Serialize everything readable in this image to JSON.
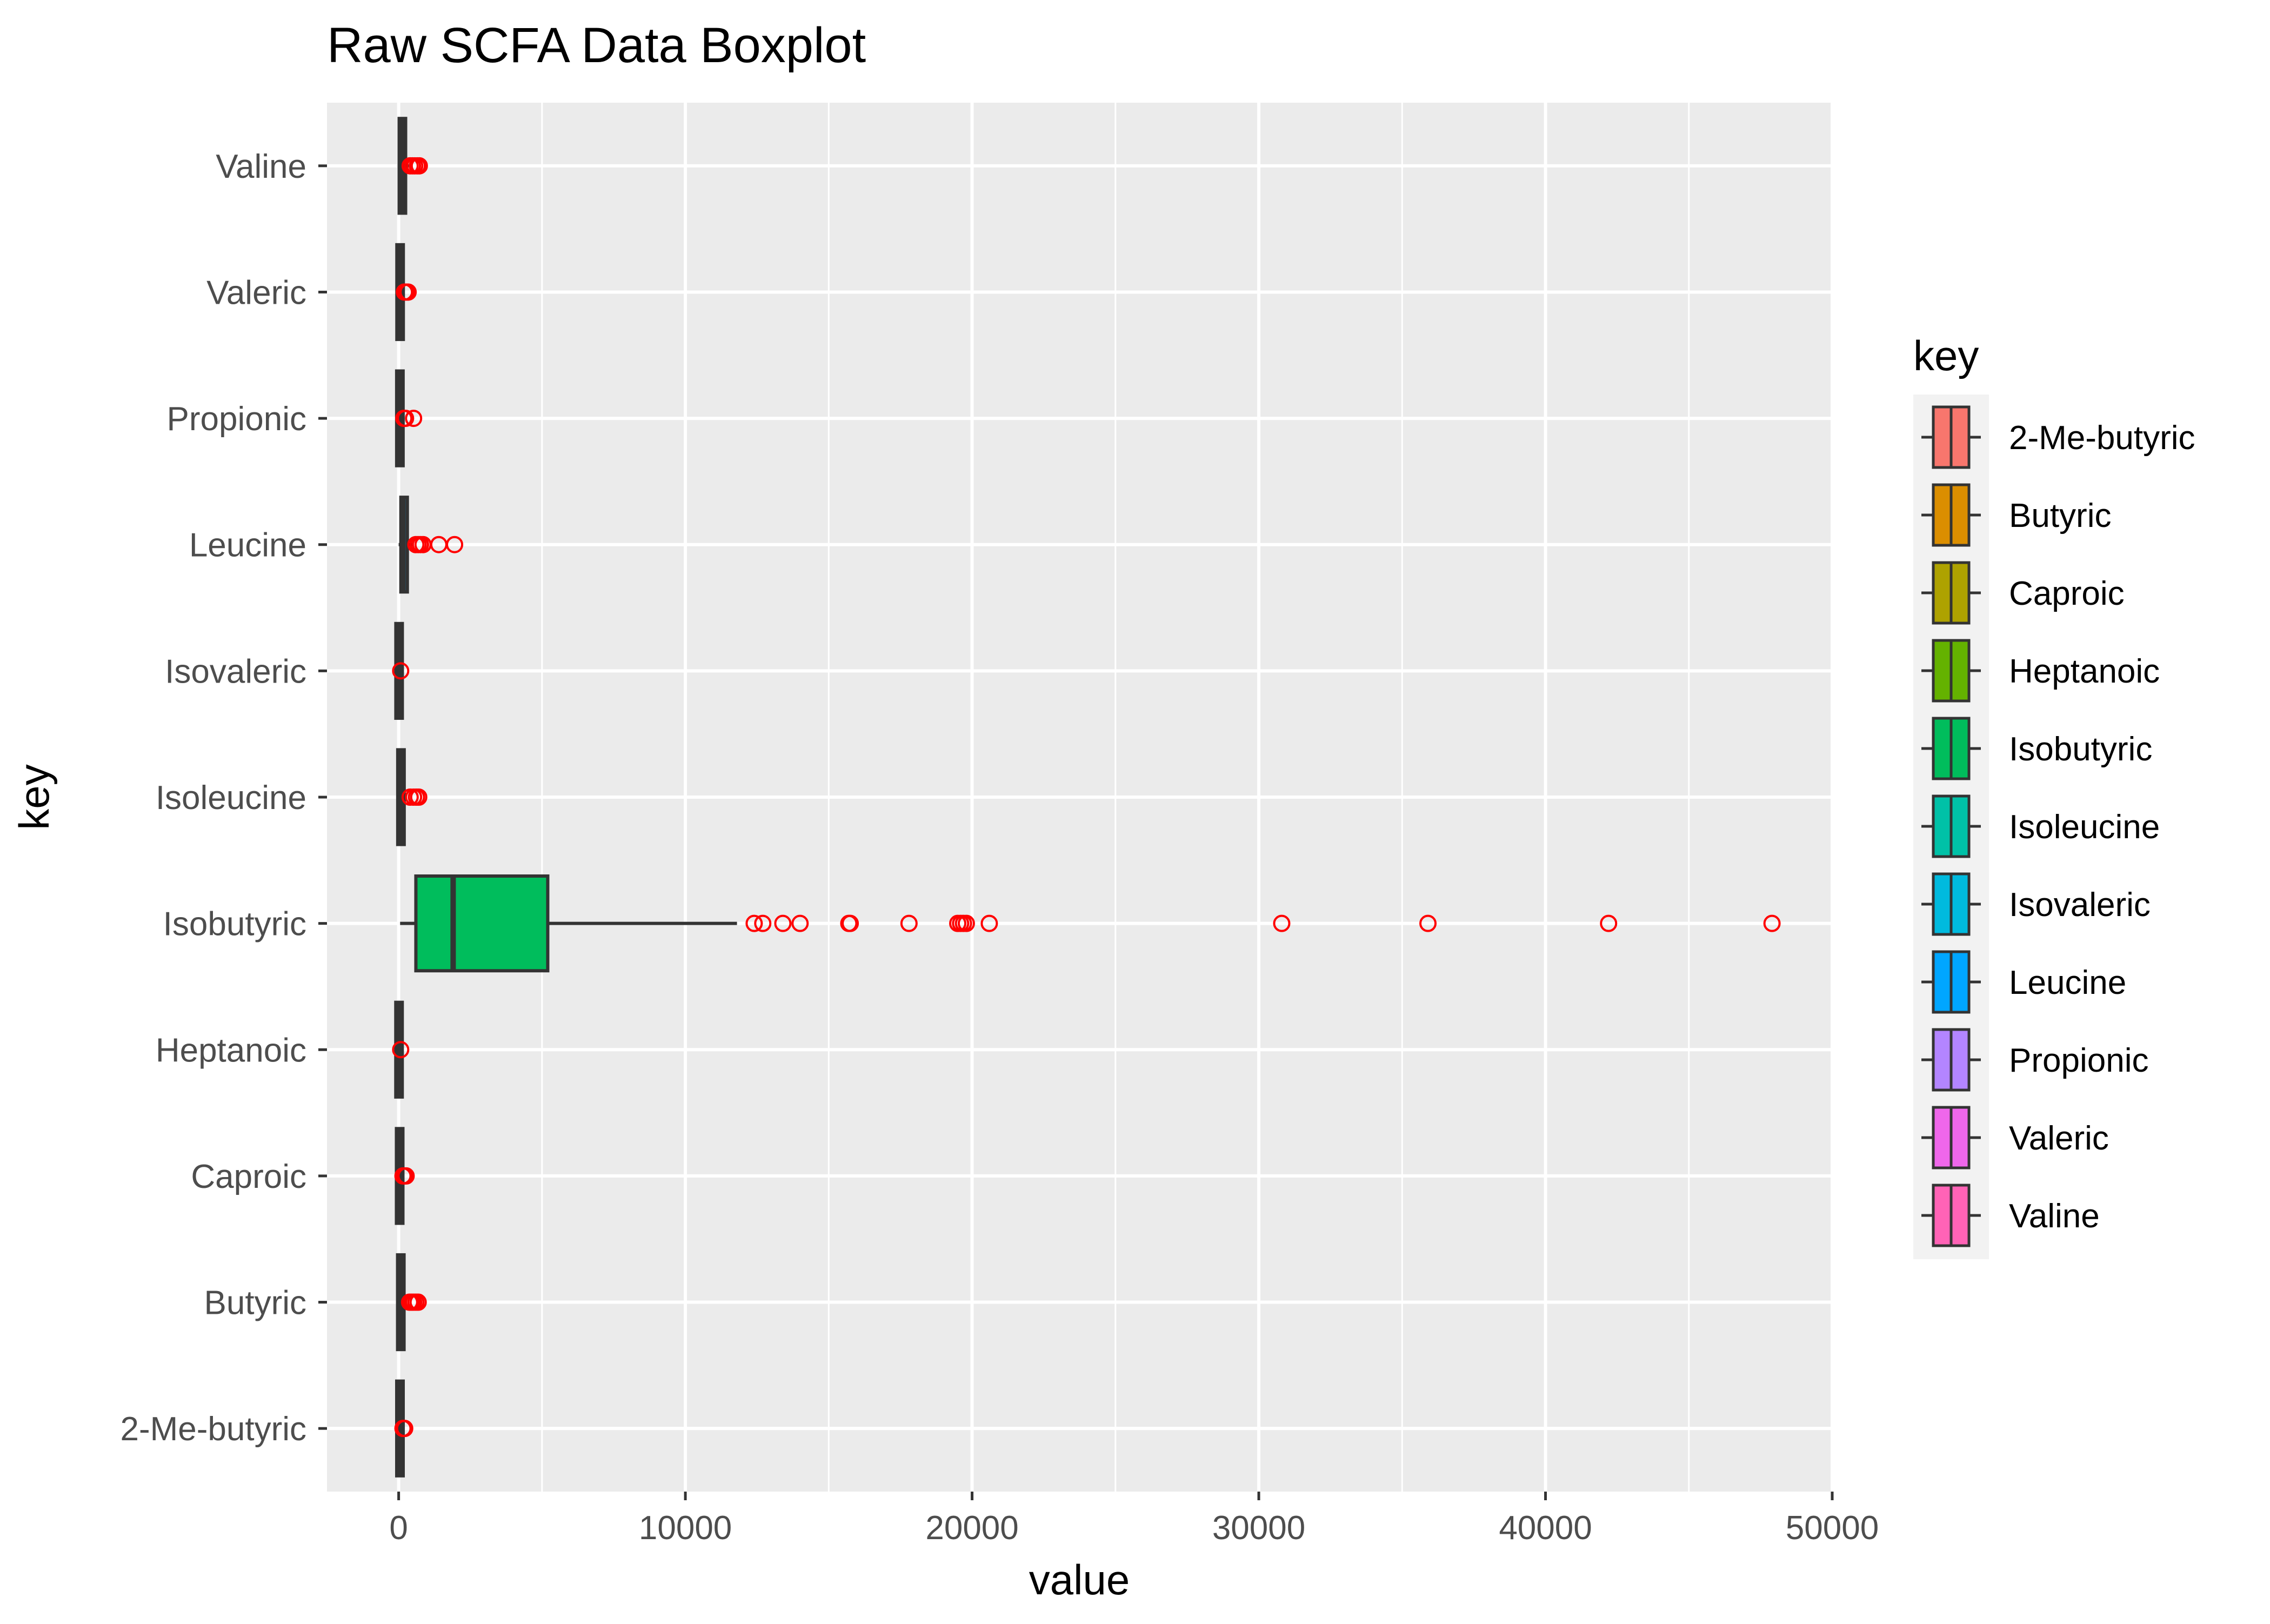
{
  "chart_data": {
    "type": "boxplot",
    "title": "Raw SCFA Data Boxplot",
    "xlabel": "value",
    "ylabel": "key",
    "orientation": "horizontal",
    "xlim": [
      -2500,
      50000
    ],
    "x_ticks": [
      0,
      10000,
      20000,
      30000,
      40000,
      50000
    ],
    "x_tick_labels": [
      "0",
      "10000",
      "20000",
      "30000",
      "40000",
      "50000"
    ],
    "grid": true,
    "categories": [
      "2-Me-butyric",
      "Butyric",
      "Caproic",
      "Heptanoic",
      "Isobutyric",
      "Isoleucine",
      "Isovaleric",
      "Leucine",
      "Propionic",
      "Valeric",
      "Valine"
    ],
    "series": [
      {
        "name": "2-Me-butyric",
        "color": "#F8766D",
        "whisker_low": 0,
        "q1": 20,
        "median": 40,
        "q3": 70,
        "whisker_high": 110,
        "outliers": [
          150,
          180,
          210
        ]
      },
      {
        "name": "Butyric",
        "color": "#DB8E00",
        "whisker_low": 0,
        "q1": 30,
        "median": 60,
        "q3": 120,
        "whisker_high": 250,
        "outliers": [
          380,
          450,
          520,
          600,
          680
        ]
      },
      {
        "name": "Caproic",
        "color": "#AEA200",
        "whisker_low": 0,
        "q1": 15,
        "median": 30,
        "q3": 55,
        "whisker_high": 100,
        "outliers": [
          150,
          210,
          260
        ]
      },
      {
        "name": "Heptanoic",
        "color": "#64B200",
        "whisker_low": 0,
        "q1": 5,
        "median": 10,
        "q3": 20,
        "whisker_high": 40,
        "outliers": [
          70
        ]
      },
      {
        "name": "Isobutyric",
        "color": "#00BD5C",
        "whisker_low": 50,
        "q1": 600,
        "median": 1900,
        "q3": 5200,
        "whisker_high": 11800,
        "outliers": [
          12400,
          12700,
          13400,
          14000,
          15700,
          15750,
          17800,
          19500,
          19600,
          19700,
          19800,
          20600,
          30800,
          35900,
          42200,
          47900
        ]
      },
      {
        "name": "Isoleucine",
        "color": "#00C1A7",
        "whisker_low": 0,
        "q1": 30,
        "median": 70,
        "q3": 130,
        "whisker_high": 250,
        "outliers": [
          400,
          520,
          620,
          700
        ]
      },
      {
        "name": "Isovaleric",
        "color": "#00BADE",
        "whisker_low": 0,
        "q1": 5,
        "median": 12,
        "q3": 25,
        "whisker_high": 45,
        "outliers": [
          70
        ]
      },
      {
        "name": "Leucine",
        "color": "#00A6FF",
        "whisker_low": 0,
        "q1": 80,
        "median": 150,
        "q3": 300,
        "whisker_high": 520,
        "outliers": [
          600,
          680,
          760,
          850,
          1400,
          1950
        ]
      },
      {
        "name": "Propionic",
        "color": "#B385FF",
        "whisker_low": 0,
        "q1": 15,
        "median": 35,
        "q3": 70,
        "whisker_high": 130,
        "outliers": [
          180,
          240,
          520
        ]
      },
      {
        "name": "Valeric",
        "color": "#EF67EB",
        "whisker_low": 0,
        "q1": 20,
        "median": 45,
        "q3": 80,
        "whisker_high": 150,
        "outliers": [
          200,
          270,
          330
        ]
      },
      {
        "name": "Valine",
        "color": "#FF63B6",
        "whisker_low": 0,
        "q1": 60,
        "median": 110,
        "q3": 200,
        "whisker_high": 350,
        "outliers": [
          400,
          480,
          560,
          650,
          720
        ]
      }
    ],
    "outlier_color": "#FF0000",
    "legend": {
      "title": "key",
      "position": "right"
    },
    "background_color": "#EBEBEB",
    "grid_color": "#FFFFFF"
  }
}
